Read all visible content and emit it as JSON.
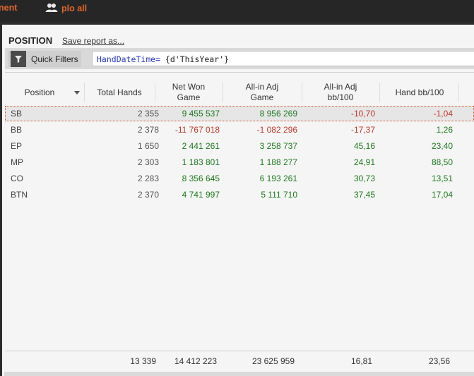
{
  "top_tabs": [
    {
      "label": "nent"
    },
    {
      "label": "plo all",
      "icon": "users-icon"
    }
  ],
  "report": {
    "title": "POSITION",
    "save_link": "Save report as..."
  },
  "filters": {
    "button_label": "Quick Filters",
    "expression_keyword": "HandDateTime=",
    "expression_value": " {d'ThisYear'}"
  },
  "columns": [
    "Position",
    "Total Hands",
    "Net Won\nGame",
    "All-in Adj\nGame",
    "All-in Adj\nbb/100",
    "Hand bb/100"
  ],
  "rows": [
    {
      "position": "SB",
      "total_hands": "2 355",
      "net_won": "9 455 537",
      "allin_game": "8 956 269",
      "allin_bb": "-10,70",
      "hand_bb": "-1,04",
      "selected": true
    },
    {
      "position": "BB",
      "total_hands": "2 378",
      "net_won": "-11 767 018",
      "allin_game": "-1 082 296",
      "allin_bb": "-17,37",
      "hand_bb": "1,26"
    },
    {
      "position": "EP",
      "total_hands": "1 650",
      "net_won": "2 441 261",
      "allin_game": "3 258 737",
      "allin_bb": "45,16",
      "hand_bb": "23,40"
    },
    {
      "position": "MP",
      "total_hands": "2 303",
      "net_won": "1 183 801",
      "allin_game": "1 188 277",
      "allin_bb": "24,91",
      "hand_bb": "88,50"
    },
    {
      "position": "CO",
      "total_hands": "2 283",
      "net_won": "8 356 645",
      "allin_game": "6 193 261",
      "allin_bb": "30,73",
      "hand_bb": "13,51"
    },
    {
      "position": "BTN",
      "total_hands": "2 370",
      "net_won": "4 741 997",
      "allin_game": "5 111 710",
      "allin_bb": "37,45",
      "hand_bb": "17,04"
    }
  ],
  "totals": {
    "total_hands": "13 339",
    "net_won": "14 412 223",
    "allin_game": "23 625 959",
    "allin_bb": "16,81",
    "hand_bb": "23,56"
  },
  "colors": {
    "accent": "#e0672a",
    "positive": "#1d7a1d",
    "negative": "#c0392b"
  }
}
